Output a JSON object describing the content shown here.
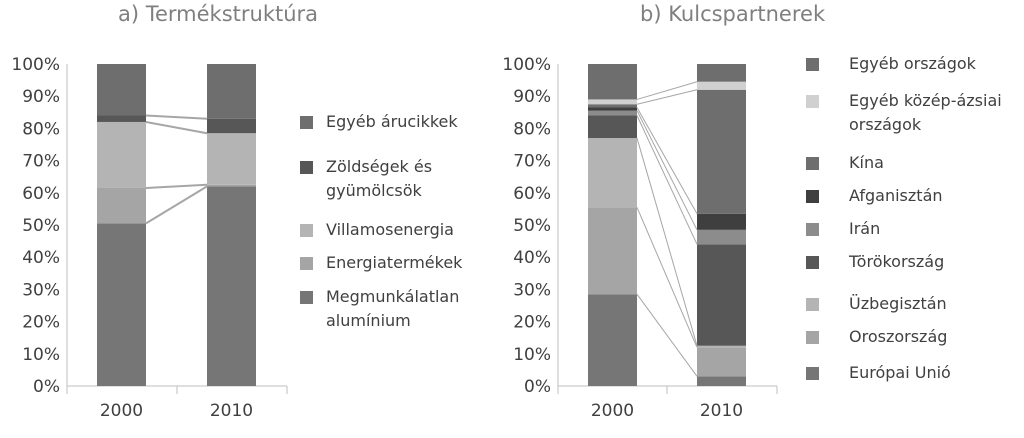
{
  "chart_data": [
    {
      "type": "bar",
      "stacked": true,
      "percent": true,
      "title": "a)   Termékstruktúra",
      "categories": [
        "2000",
        "2010"
      ],
      "ylim": [
        0,
        100
      ],
      "yticks": [
        "0%",
        "10%",
        "20%",
        "30%",
        "40%",
        "50%",
        "60%",
        "70%",
        "80%",
        "90%",
        "100%"
      ],
      "legend_placement": "right",
      "series": [
        {
          "name": "Megmunkálatlan alumínium",
          "values": [
            50.5,
            62
          ],
          "color": "#767676"
        },
        {
          "name": "Energiatermékek",
          "values": [
            11,
            0.5
          ],
          "color": "#a5a5a5"
        },
        {
          "name": "Villamosenergia",
          "values": [
            20.5,
            16
          ],
          "color": "#b4b4b4"
        },
        {
          "name": "Zöldségek és gyümölcsök",
          "values": [
            2,
            4.5
          ],
          "color": "#575757"
        },
        {
          "name": "Egyéb árucikkek",
          "values": [
            16,
            17
          ],
          "color": "#6e6e6e"
        }
      ]
    },
    {
      "type": "bar",
      "stacked": true,
      "percent": true,
      "title": "b)   Kulcspartnerek",
      "categories": [
        "2000",
        "2010"
      ],
      "ylim": [
        0,
        100
      ],
      "yticks": [
        "0%",
        "10%",
        "20%",
        "30%",
        "40%",
        "50%",
        "60%",
        "70%",
        "80%",
        "90%",
        "100%"
      ],
      "legend_placement": "right",
      "series": [
        {
          "name": "Európai Unió",
          "values": [
            28.5,
            3
          ],
          "color": "#767676"
        },
        {
          "name": "Oroszország",
          "values": [
            27,
            9
          ],
          "color": "#a5a5a5"
        },
        {
          "name": "Üzbegisztán",
          "values": [
            21.5,
            0.5
          ],
          "color": "#b4b4b4"
        },
        {
          "name": "Törökország",
          "values": [
            7,
            31.5
          ],
          "color": "#575757"
        },
        {
          "name": "Irán",
          "values": [
            1.5,
            4.5
          ],
          "color": "#8c8c8c"
        },
        {
          "name": "Afganisztán",
          "values": [
            1,
            5
          ],
          "color": "#3f3f3f"
        },
        {
          "name": "Kína",
          "values": [
            1,
            38.5
          ],
          "color": "#6e6e6e"
        },
        {
          "name": "Egyéb közép-ázsiai országok",
          "values": [
            1.5,
            2.5
          ],
          "color": "#d0d0d0"
        },
        {
          "name": "Egyéb országok",
          "values": [
            11,
            5.5
          ],
          "color": "#6e6e6e"
        }
      ]
    }
  ]
}
